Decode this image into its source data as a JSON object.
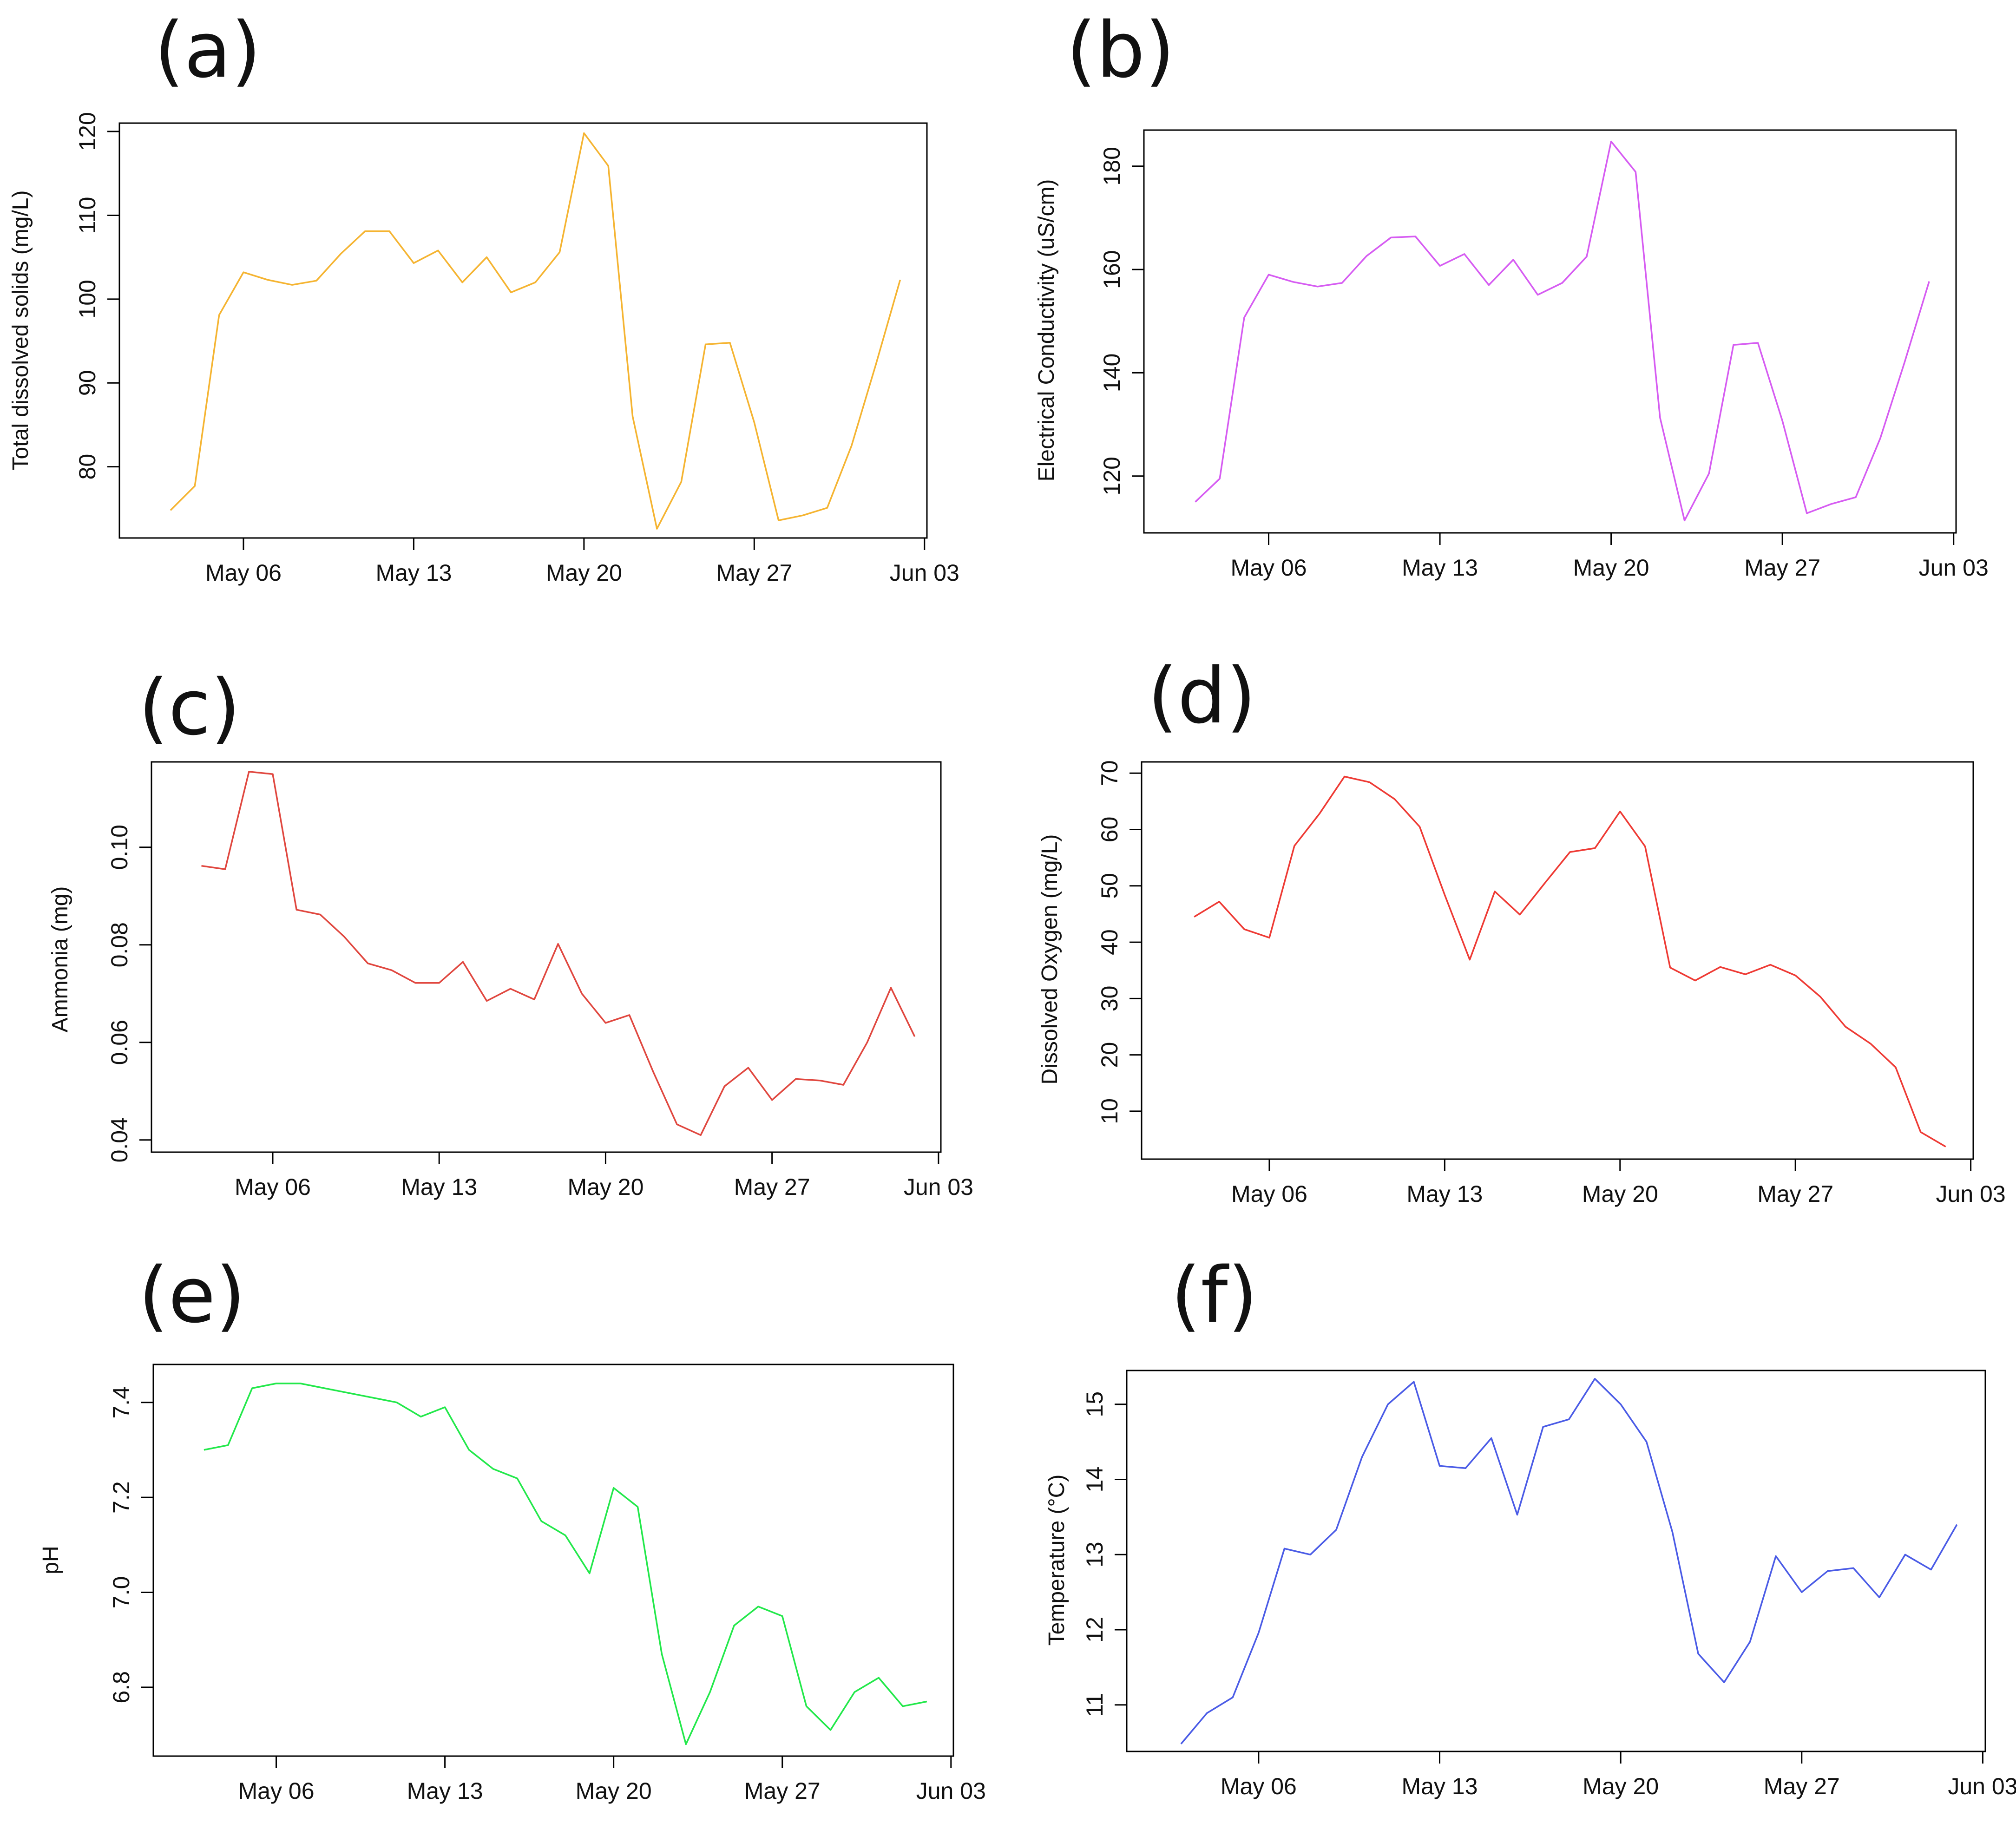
{
  "figure": {
    "colors": {
      "tds": "#f5b431",
      "ec": "#d65cf2",
      "ammonia": "#e0473f",
      "dissolved_oxygen": "#ee3a34",
      "ph": "#22e84a",
      "temperature": "#4a5be6",
      "axis": "#000000"
    }
  },
  "chart_data": [
    {
      "id": "a",
      "panel_label": "(a)",
      "type": "line",
      "ylabel": "Total dissolved solids (mg/L)",
      "xlabel": "",
      "x_ticks": [
        "May 06",
        "May 13",
        "May 20",
        "May 27",
        "Jun 03"
      ],
      "x_tick_days": [
        6,
        13,
        20,
        27,
        34
      ],
      "x_range": [
        0.9,
        34.1
      ],
      "y_ticks": [
        "80",
        "90",
        "100",
        "110",
        "120"
      ],
      "y_tick_values": [
        80,
        90,
        100,
        110,
        120
      ],
      "ylim": [
        71.5,
        121
      ],
      "x": [
        3,
        4,
        5,
        6,
        7,
        8,
        9,
        10,
        11,
        12,
        13,
        14,
        15,
        16,
        17,
        18,
        19,
        20,
        21,
        22,
        23,
        24,
        25,
        26,
        27,
        28,
        29,
        30,
        31,
        32,
        33
      ],
      "values": [
        74.8,
        77.7,
        98.1,
        103.2,
        102.3,
        101.7,
        102.2,
        105.4,
        108.1,
        108.1,
        104.3,
        105.8,
        102.0,
        105.0,
        100.8,
        102.0,
        105.6,
        119.8,
        115.9,
        86.0,
        72.6,
        78.2,
        94.6,
        94.8,
        85.3,
        73.6,
        74.2,
        75.1,
        82.5,
        92.2,
        102.3
      ]
    },
    {
      "id": "b",
      "panel_label": "(b)",
      "type": "line",
      "ylabel": "Electrical Conductivity (uS/cm)",
      "xlabel": "",
      "x_ticks": [
        "May 06",
        "May 13",
        "May 20",
        "May 27",
        "Jun 03"
      ],
      "x_tick_days": [
        6,
        13,
        20,
        27,
        34
      ],
      "x_range": [
        0.9,
        34.1
      ],
      "y_ticks": [
        "120",
        "140",
        "160",
        "180"
      ],
      "y_tick_values": [
        120,
        140,
        160,
        180
      ],
      "ylim": [
        109,
        187
      ],
      "x": [
        3,
        4,
        5,
        6,
        7,
        8,
        9,
        10,
        11,
        12,
        13,
        14,
        15,
        16,
        17,
        18,
        19,
        20,
        21,
        22,
        23,
        24,
        25,
        26,
        27,
        28,
        29,
        30,
        31,
        32,
        33
      ],
      "values": [
        115.0,
        119.5,
        150.7,
        159.0,
        157.6,
        156.7,
        157.4,
        162.6,
        166.2,
        166.4,
        160.7,
        163.0,
        157.0,
        161.9,
        155.1,
        157.4,
        162.5,
        184.8,
        178.9,
        131.3,
        111.4,
        120.5,
        145.4,
        145.8,
        130.7,
        112.8,
        114.6,
        115.9,
        127.3,
        142.1,
        157.7
      ]
    },
    {
      "id": "c",
      "panel_label": "(c)",
      "type": "line",
      "ylabel": "Ammonia (mg)",
      "xlabel": "",
      "x_ticks": [
        "May 06",
        "May 13",
        "May 20",
        "May 27",
        "Jun 03"
      ],
      "x_tick_days": [
        6,
        13,
        20,
        27,
        34
      ],
      "x_range": [
        0.9,
        34.1
      ],
      "y_ticks": [
        "0.04",
        "0.06",
        "0.08",
        "0.10"
      ],
      "y_tick_values": [
        0.04,
        0.06,
        0.08,
        0.1
      ],
      "ylim": [
        0.0375,
        0.1175
      ],
      "x": [
        3,
        4,
        5,
        6,
        7,
        8,
        9,
        10,
        11,
        12,
        13,
        14,
        15,
        16,
        17,
        18,
        19,
        20,
        21,
        22,
        23,
        24,
        25,
        26,
        27,
        28,
        29,
        30,
        31,
        32,
        33
      ],
      "values": [
        0.0962,
        0.0955,
        0.1155,
        0.115,
        0.0872,
        0.0862,
        0.0817,
        0.0762,
        0.0748,
        0.0722,
        0.0722,
        0.0765,
        0.0685,
        0.071,
        0.0688,
        0.0802,
        0.07,
        0.064,
        0.0656,
        0.054,
        0.0432,
        0.041,
        0.051,
        0.0548,
        0.0482,
        0.0525,
        0.0522,
        0.0513,
        0.06,
        0.0712,
        0.0612
      ]
    },
    {
      "id": "d",
      "panel_label": "(d)",
      "type": "line",
      "ylabel": "Dissolved Oxygen (mg/L)",
      "xlabel": "",
      "x_ticks": [
        "May 06",
        "May 13",
        "May 20",
        "May 27",
        "Jun 03"
      ],
      "x_tick_days": [
        6,
        13,
        20,
        27,
        34
      ],
      "x_range": [
        0.9,
        34.1
      ],
      "y_ticks": [
        "10",
        "20",
        "30",
        "40",
        "50",
        "60",
        "70"
      ],
      "y_tick_values": [
        10,
        20,
        30,
        40,
        50,
        60,
        70
      ],
      "ylim": [
        1.5,
        72
      ],
      "x": [
        3,
        4,
        5,
        6,
        7,
        8,
        9,
        10,
        11,
        12,
        13,
        14,
        15,
        16,
        17,
        18,
        19,
        20,
        21,
        22,
        23,
        24,
        25,
        26,
        27,
        28,
        29,
        30,
        31,
        32,
        33
      ],
      "values": [
        44.5,
        47.2,
        42.3,
        40.8,
        57.1,
        62.8,
        69.4,
        68.4,
        65.4,
        60.5,
        48.4,
        36.9,
        49.0,
        44.9,
        50.5,
        56.0,
        56.7,
        63.2,
        57.0,
        35.5,
        33.2,
        35.6,
        34.3,
        36.0,
        34.1,
        30.3,
        25.0,
        22.0,
        17.8,
        6.3,
        3.7
      ]
    },
    {
      "id": "e",
      "panel_label": "(e)",
      "type": "line",
      "ylabel": "pH",
      "xlabel": "",
      "x_ticks": [
        "May 06",
        "May 13",
        "May 20",
        "May 27",
        "Jun 03"
      ],
      "x_tick_days": [
        6,
        13,
        20,
        27,
        34
      ],
      "x_range": [
        0.9,
        34.1
      ],
      "y_ticks": [
        "6.8",
        "7.0",
        "7.2",
        "7.4"
      ],
      "y_tick_values": [
        6.8,
        7.0,
        7.2,
        7.4
      ],
      "ylim": [
        6.655,
        7.48
      ],
      "x": [
        3,
        4,
        5,
        6,
        7,
        8,
        9,
        10,
        11,
        12,
        13,
        14,
        15,
        16,
        17,
        18,
        19,
        20,
        21,
        22,
        23,
        24,
        25,
        26,
        27,
        28,
        29,
        30,
        31,
        32,
        33
      ],
      "values": [
        7.3,
        7.31,
        7.43,
        7.44,
        7.44,
        7.43,
        7.42,
        7.41,
        7.4,
        7.37,
        7.39,
        7.3,
        7.26,
        7.24,
        7.15,
        7.12,
        7.04,
        7.22,
        7.18,
        6.87,
        6.68,
        6.79,
        6.93,
        6.97,
        6.95,
        6.76,
        6.71,
        6.79,
        6.82,
        6.76,
        6.77
      ]
    },
    {
      "id": "f",
      "panel_label": "(f)",
      "type": "line",
      "ylabel": "Temperature (°C)",
      "xlabel": "",
      "x_ticks": [
        "May 06",
        "May 13",
        "May 20",
        "May 27",
        "Jun 03"
      ],
      "x_tick_days": [
        6,
        13,
        20,
        27,
        34
      ],
      "x_range": [
        0.9,
        34.1
      ],
      "y_ticks": [
        "11",
        "12",
        "13",
        "14",
        "15"
      ],
      "y_tick_values": [
        11,
        12,
        13,
        14,
        15
      ],
      "ylim": [
        10.38,
        15.45
      ],
      "x": [
        3,
        4,
        5,
        6,
        7,
        8,
        9,
        10,
        11,
        12,
        13,
        14,
        15,
        16,
        17,
        18,
        19,
        20,
        21,
        22,
        23,
        24,
        25,
        26,
        27,
        28,
        29,
        30,
        31,
        32,
        33
      ],
      "values": [
        10.48,
        10.89,
        11.1,
        11.96,
        13.08,
        13.0,
        13.33,
        14.3,
        15.0,
        15.3,
        14.18,
        14.15,
        14.55,
        13.53,
        14.7,
        14.8,
        15.34,
        15.0,
        14.5,
        13.3,
        11.68,
        11.3,
        11.84,
        12.98,
        12.5,
        12.78,
        12.82,
        12.43,
        13.0,
        12.8,
        13.4
      ]
    }
  ]
}
